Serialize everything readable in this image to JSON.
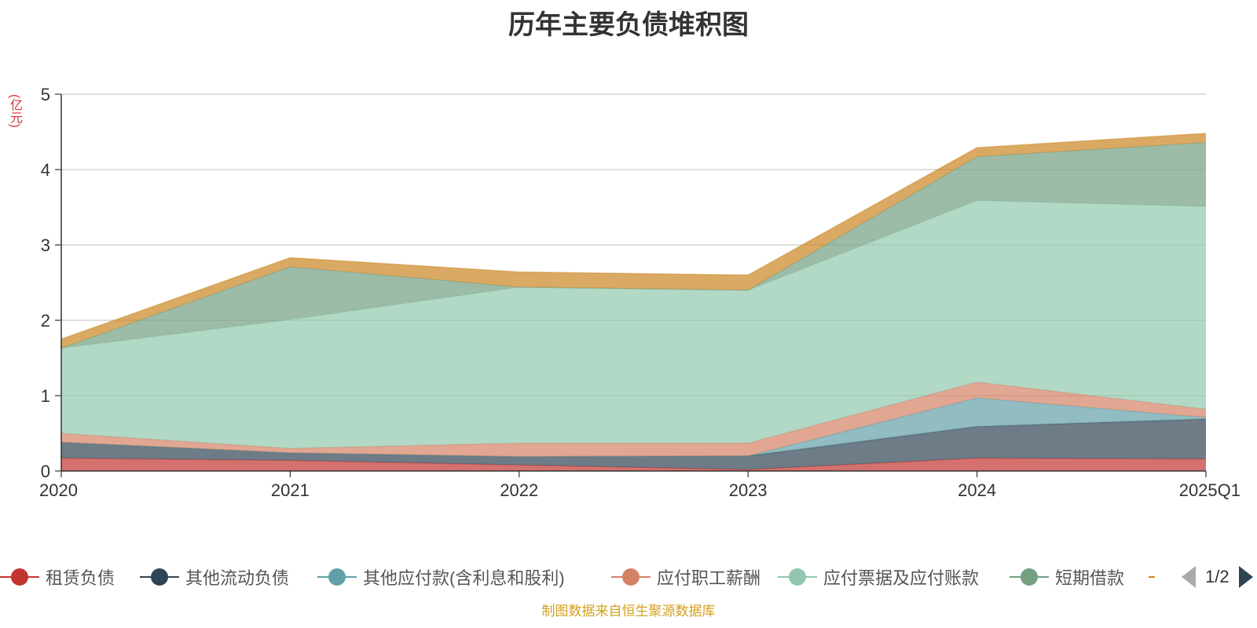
{
  "chart_data": {
    "type": "area",
    "stacked": true,
    "title": "历年主要负债堆积图",
    "ylabel": "(亿元)",
    "ylim": [
      0,
      5
    ],
    "yticks": [
      "0",
      "1",
      "2",
      "3",
      "4",
      "5"
    ],
    "categories": [
      "2020",
      "2021",
      "2022",
      "2023",
      "2024",
      "2025Q1"
    ],
    "grid": true,
    "legend_position": "bottom",
    "series": [
      {
        "name": "租赁负债",
        "color": "#c23531",
        "values": [
          0.17,
          0.14,
          0.08,
          0.02,
          0.17,
          0.16
        ]
      },
      {
        "name": "其他流动负债",
        "color": "#2f4554",
        "values": [
          0.21,
          0.1,
          0.11,
          0.18,
          0.42,
          0.53
        ]
      },
      {
        "name": "其他应付款(含利息和股利)",
        "color": "#61a0a8",
        "values": [
          0.0,
          0.0,
          0.0,
          0.0,
          0.38,
          0.02
        ]
      },
      {
        "name": "应付职工薪酬",
        "color": "#d48265",
        "values": [
          0.12,
          0.06,
          0.18,
          0.17,
          0.21,
          0.11
        ]
      },
      {
        "name": "应付票据及应付账款",
        "color": "#91c7ae",
        "values": [
          1.13,
          1.71,
          2.07,
          2.03,
          2.41,
          2.69
        ]
      },
      {
        "name": "短期借款",
        "color": "#749f83",
        "values": [
          0.0,
          0.7,
          0.0,
          0.0,
          0.58,
          0.85
        ]
      },
      {
        "name": "",
        "color": "#ca8622",
        "values": [
          0.12,
          0.12,
          0.2,
          0.2,
          0.12,
          0.12
        ]
      }
    ]
  },
  "legend": {
    "page_text": "1/2"
  },
  "source": "制图数据来自恒生聚源数据库"
}
